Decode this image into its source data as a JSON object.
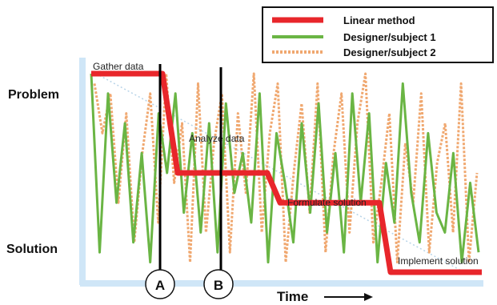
{
  "y_axis": {
    "top_label": "Problem",
    "bottom_label": "Solution"
  },
  "x_axis": {
    "label": "Time"
  },
  "legend": {
    "items": [
      {
        "label": "Linear method",
        "color": "#e8262b",
        "style": "solid-thick"
      },
      {
        "label": "Designer/subject 1",
        "color": "#6ab544",
        "style": "solid"
      },
      {
        "label": "Designer/subject 2",
        "color": "#f0a870",
        "style": "dotted"
      }
    ]
  },
  "phases": [
    {
      "label": "Gather data"
    },
    {
      "label": "Analyze data"
    },
    {
      "label": "Formulate solution"
    },
    {
      "label": "Implement solution"
    }
  ],
  "markers": [
    {
      "label": "A"
    },
    {
      "label": "B"
    }
  ],
  "colors": {
    "axis": "#cfe6f7",
    "linear": "#e8262b",
    "subject1": "#6ab544",
    "subject2": "#f0a870",
    "guide": "#b8d4e8"
  },
  "series": {
    "linear_levels": [
      1,
      0.5,
      0.35,
      0
    ],
    "subject1_levels": [
      1.0,
      0.1,
      0.9,
      0.35,
      0.75,
      0.15,
      0.6,
      0.05,
      0.8,
      0.5,
      0.9,
      0.3,
      0.7,
      0.2,
      0.75,
      0.1,
      0.85,
      0.4,
      0.6,
      0.25,
      0.9,
      0.05,
      0.7,
      0.45,
      0.15,
      0.75,
      0.3,
      0.85,
      0.2,
      0.6,
      0.1,
      0.9,
      0.35,
      0.8,
      0.05,
      0.55,
      0.25,
      0.95,
      0.4,
      0.15,
      0.7,
      0.3,
      0.2,
      0.6,
      0.05,
      0.45,
      0.1
    ],
    "subject2_levels": [
      0.95,
      0.7,
      0.9,
      0.35,
      0.8,
      0.15,
      0.6,
      0.9,
      0.25,
      1.0,
      0.45,
      0.75,
      0.05,
      0.95,
      0.2,
      0.65,
      0.9,
      0.1,
      0.8,
      0.4,
      1.0,
      0.2,
      0.7,
      0.95,
      0.05,
      0.5,
      0.85,
      0.3,
      0.95,
      0.1,
      0.6,
      0.9,
      0.2,
      0.75,
      1.0,
      0.15,
      0.45,
      0.8,
      0.05,
      0.65,
      0.35,
      0.9,
      0.1,
      0.55,
      0.75,
      0.2,
      0.95,
      0.05,
      0.5
    ]
  }
}
